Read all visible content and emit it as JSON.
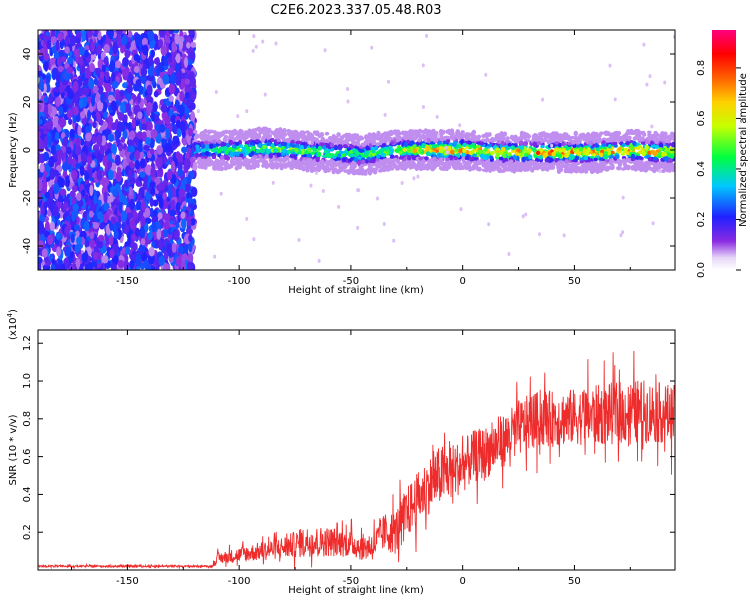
{
  "title": "C2E6.2023.337.05.48.R03",
  "colors": {
    "snr_line": "#ee2c2c",
    "axes": "#000000",
    "background": "#ffffff"
  },
  "chart_data": [
    {
      "type": "heatmap",
      "xlabel": "Height of straight line (km)",
      "ylabel": "Frequency (Hz)",
      "xlim": [
        -190,
        95
      ],
      "ylim": [
        -50,
        50
      ],
      "x_ticks": [
        -150,
        -100,
        -50,
        0,
        50
      ],
      "y_ticks": [
        -40,
        -20,
        0,
        20,
        40
      ],
      "colorbar": {
        "label": "Normalized spectral amplitude",
        "range": [
          0.0,
          0.95
        ],
        "ticks": [
          "0.0",
          "0.2",
          "0.4",
          "0.6",
          "0.8"
        ],
        "colormap": "rainbow (violet-blue-cyan-green-yellow-orange-red-magenta)"
      },
      "regions": [
        {
          "x_range": [
            -190,
            -120
          ],
          "description_level": "broadband noise, amplitude ~0.1-0.25 across full frequency span"
        },
        {
          "x_range": [
            -120,
            95
          ],
          "center_freq_hz": 0,
          "band_halfwidth_hz": 5,
          "peak_amplitude": 0.8
        }
      ],
      "profile": [
        {
          "x": -118,
          "freq": 0,
          "amp": 0.45
        },
        {
          "x": -100,
          "freq": 0,
          "amp": 0.55
        },
        {
          "x": -90,
          "freq": 1,
          "amp": 0.6
        },
        {
          "x": -75,
          "freq": 0,
          "amp": 0.6
        },
        {
          "x": -60,
          "freq": -1,
          "amp": 0.55
        },
        {
          "x": -45,
          "freq": -2,
          "amp": 0.55
        },
        {
          "x": -30,
          "freq": 0,
          "amp": 0.6
        },
        {
          "x": -15,
          "freq": 0,
          "amp": 0.8
        },
        {
          "x": 0,
          "freq": 0,
          "amp": 0.85
        },
        {
          "x": 20,
          "freq": -1,
          "amp": 0.8
        },
        {
          "x": 40,
          "freq": -1,
          "amp": 0.85
        },
        {
          "x": 60,
          "freq": -1,
          "amp": 0.8
        },
        {
          "x": 75,
          "freq": 0,
          "amp": 0.85
        },
        {
          "x": 92,
          "freq": -1,
          "amp": 0.8
        }
      ]
    },
    {
      "type": "line",
      "xlabel": "Height of straight line (km)",
      "ylabel": "SNR (10 * v/v)",
      "y_multiplier_label": "(x10",
      "y_multiplier_exp": "4",
      "xlim": [
        -190,
        95
      ],
      "ylim": [
        0,
        1.27
      ],
      "x_ticks": [
        -150,
        -100,
        -50,
        0,
        50
      ],
      "y_ticks": [
        0.2,
        0.4,
        0.6,
        0.8,
        1.0,
        1.2
      ],
      "series": [
        {
          "x": [
            -190,
            -170,
            -150,
            -130,
            -112,
            -110,
            -100,
            -90,
            -80,
            -70,
            -60,
            -50,
            -45,
            -40,
            -35,
            -30,
            -25,
            -20,
            -15,
            -10,
            -5,
            0,
            5,
            10,
            15,
            20,
            25,
            30,
            35,
            40,
            50,
            60,
            70,
            80,
            90,
            95
          ],
          "y": [
            0.02,
            0.02,
            0.02,
            0.02,
            0.02,
            0.06,
            0.08,
            0.1,
            0.12,
            0.15,
            0.15,
            0.14,
            0.12,
            0.13,
            0.2,
            0.2,
            0.3,
            0.38,
            0.45,
            0.5,
            0.52,
            0.55,
            0.6,
            0.62,
            0.66,
            0.7,
            0.75,
            0.78,
            0.8,
            0.8,
            0.81,
            0.82,
            0.83,
            0.84,
            0.83,
            0.82
          ],
          "noise_amplitude": [
            0.005,
            0.005,
            0.005,
            0.005,
            0.005,
            0.03,
            0.04,
            0.05,
            0.06,
            0.08,
            0.08,
            0.07,
            0.07,
            0.08,
            0.1,
            0.12,
            0.14,
            0.14,
            0.15,
            0.16,
            0.15,
            0.14,
            0.14,
            0.14,
            0.14,
            0.14,
            0.15,
            0.15,
            0.15,
            0.15,
            0.15,
            0.16,
            0.17,
            0.17,
            0.16,
            0.16
          ]
        }
      ]
    }
  ]
}
